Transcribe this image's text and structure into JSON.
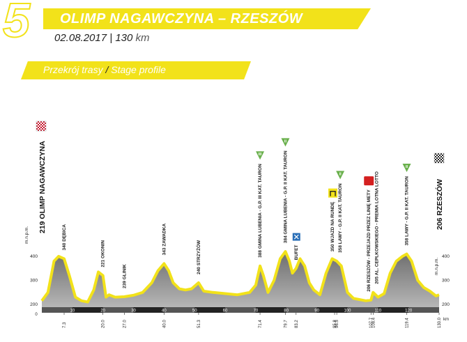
{
  "header": {
    "stage_number": "5",
    "title": "OLIMP NAGAWCZYNA – RZESZÓW",
    "date": "02.08.2017",
    "separator": "|",
    "distance_value": "130",
    "distance_unit": "km",
    "profile_pl": "Przekrój trasy",
    "profile_slash": "/",
    "profile_en": "Stage profile"
  },
  "colors": {
    "accent_yellow": "#f2e21a",
    "sprint_green": "#6ab04c",
    "finish_red": "#d42020",
    "terrain_gray": "#8f8f8f"
  },
  "chart_data": {
    "type": "area",
    "title": "",
    "xlabel": "km",
    "ylabel": "m.n.p.m.",
    "xlim": [
      0,
      130
    ],
    "ylim": [
      200,
      500
    ],
    "x": [
      0,
      2,
      4,
      5.5,
      7.3,
      9,
      11,
      13,
      15,
      17,
      18.5,
      20,
      21,
      22,
      24,
      27,
      30,
      33,
      36,
      38,
      40,
      41.5,
      43,
      45,
      47,
      49,
      51.3,
      53,
      56,
      60,
      64,
      68,
      70,
      71.4,
      72.5,
      74,
      76,
      78,
      79.7,
      81,
      82,
      83.2,
      84.5,
      86,
      87.5,
      89,
      91,
      93,
      95,
      96.5,
      98,
      100,
      102,
      104,
      106,
      107.7,
      108.4,
      110,
      112,
      114,
      116,
      118,
      119.4,
      121,
      123,
      125,
      127,
      129,
      130
    ],
    "y": [
      215,
      250,
      380,
      400,
      390,
      320,
      230,
      215,
      210,
      260,
      335,
      320,
      230,
      240,
      230,
      232,
      238,
      250,
      290,
      340,
      370,
      340,
      290,
      265,
      260,
      265,
      290,
      255,
      250,
      245,
      240,
      250,
      280,
      360,
      320,
      250,
      300,
      390,
      420,
      380,
      330,
      350,
      390,
      360,
      290,
      260,
      240,
      330,
      390,
      380,
      360,
      250,
      225,
      220,
      215,
      218,
      250,
      230,
      245,
      330,
      380,
      400,
      410,
      380,
      300,
      270,
      255,
      235,
      240
    ],
    "y_ticks": [
      200,
      300,
      400
    ],
    "x_ticks": [
      "0",
      "10",
      "20",
      "30",
      "40",
      "50",
      "60",
      "70",
      "80",
      "90",
      "100",
      "110",
      "120"
    ],
    "start": {
      "km": 0,
      "label": "219 OLIMP NAGAWCZYNA"
    },
    "finish": {
      "km": 130,
      "label": "206 RZESZÓW"
    },
    "points": [
      {
        "km": 7.3,
        "km_label": "7.3",
        "label": "340 DĘBICA",
        "icon": "none"
      },
      {
        "km": 20.0,
        "km_label": "20.0",
        "label": "221 OKONIN",
        "icon": "none"
      },
      {
        "km": 27.0,
        "km_label": "27.0",
        "label": "239 GLINIK",
        "icon": "none"
      },
      {
        "km": 40.0,
        "km_label": "40.0",
        "label": "343 ZAWADKA",
        "icon": "none"
      },
      {
        "km": 51.3,
        "km_label": "51.3",
        "label": "240 STRZYŻÓW",
        "icon": "none"
      },
      {
        "km": 71.4,
        "km_label": "71.4",
        "label": "388 GMINA LUBENIA - G.P. III KAT. TAURON",
        "icon": "green",
        "roman": "III"
      },
      {
        "km": 79.7,
        "km_label": "79.7",
        "label": "384 GMINA LUBENIA - G.P. II KAT. TAURON",
        "icon": "green",
        "roman": "II"
      },
      {
        "km": 83.2,
        "km_label": "83.2",
        "label": "BUFET",
        "icon": "feed"
      },
      {
        "km": 95.8,
        "km_label": "95.8",
        "label": "350 WJAZD NA RUNDĘ",
        "icon": "lap"
      },
      {
        "km": 96.5,
        "km_label": "96.5",
        "label": "358 LAWY - G.P. II KAT. TAURON",
        "icon": "green",
        "roman": "II"
      },
      {
        "km": 107.7,
        "km_label": "107.7",
        "label": "206 RZESZÓW - PRZEJAZD PRZEZ LINIĘ METY",
        "icon": "red"
      },
      {
        "km": 108.4,
        "km_label": "108.4",
        "label": "205 AL. CEPLKOWSKIEGO - PREMIA LOTNA LOTTO",
        "icon": "none"
      },
      {
        "km": 119.4,
        "km_label": "119.4",
        "label": "358 LAWY - G.P. II KAT. TAURON",
        "icon": "green",
        "roman": "II"
      },
      {
        "km": 130.0,
        "km_label": "130.0",
        "label": "",
        "icon": "none"
      }
    ]
  }
}
